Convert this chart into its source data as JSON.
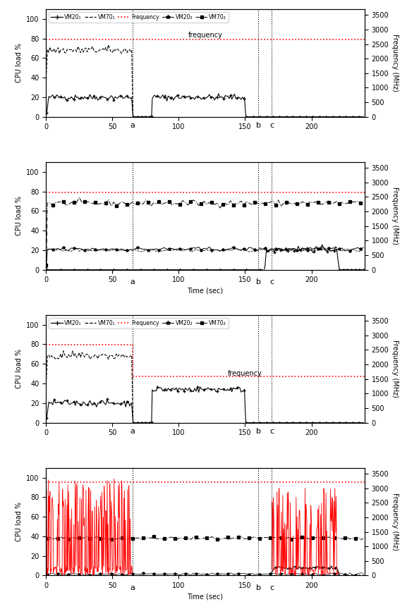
{
  "fig_width": 5.94,
  "fig_height": 8.64,
  "dpi": 100,
  "xlim": [
    0,
    240
  ],
  "ylim_cpu": [
    0,
    110
  ],
  "ylim_freq": [
    0,
    3700
  ],
  "xticks": [
    0,
    50,
    100,
    150,
    200
  ],
  "yticks_cpu": [
    0,
    20,
    40,
    60,
    80,
    100
  ],
  "yticks_freq": [
    0,
    500,
    1000,
    1500,
    2000,
    2500,
    3000,
    3500
  ],
  "vlines": [
    65,
    160,
    170
  ],
  "vline_labels": [
    "a",
    "b",
    "c"
  ],
  "xlabel": "Time (sec)",
  "ylabel_left": "CPU load %",
  "ylabel_right": "Frequency (MHz)",
  "sp1_freq_mhz": 2666,
  "sp2_freq_mhz": 2666,
  "sp3_freq_mhz_high": 2666,
  "sp3_freq_mhz_low": 1600,
  "sp4_freq_mhz": 3200,
  "sp1_vm201_y": 20,
  "sp1_vm701_y": 68,
  "sp2_vm701_y": 21,
  "sp2_vm202_y": 21,
  "sp2_vm702_y": 68,
  "sp3_vm201_y1": 20,
  "sp3_vm201_y2": 34,
  "sp3_vm701_y": 68,
  "sp4_vm201_y": 8,
  "sp4_vm202_y": 38,
  "sp4_vm702_y": 38
}
